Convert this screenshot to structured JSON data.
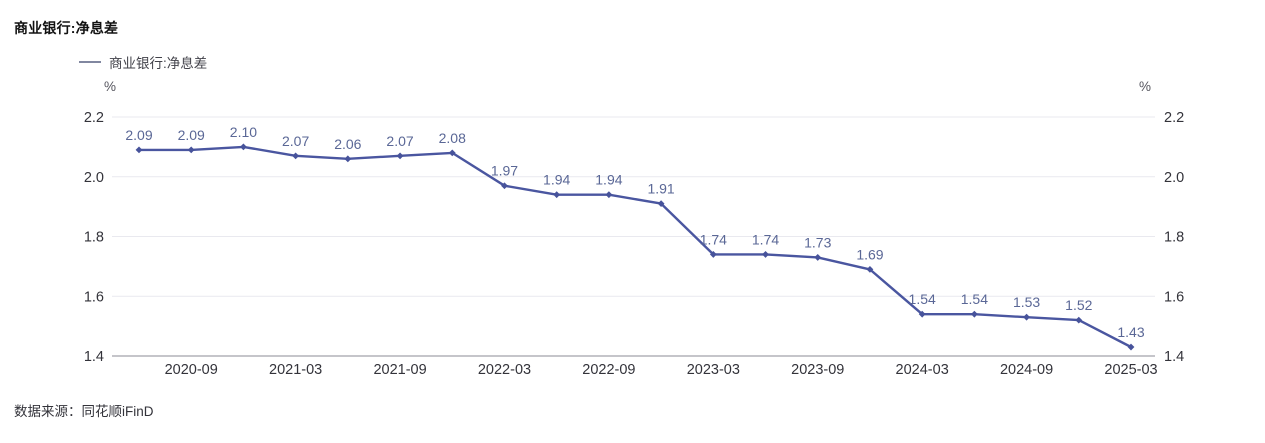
{
  "title": "商业银行:净息差",
  "legend": {
    "label": "商业银行:净息差"
  },
  "units": {
    "left": "%",
    "right": "%"
  },
  "source": {
    "label": "数据来源：",
    "value": "同花顺iFinD"
  },
  "colors": {
    "line": "#4a56a0",
    "marker": "#47539b",
    "data_label": "#5a6796",
    "axis_text": "#33333a",
    "grid_line": "#e9e9ef",
    "axis_line": "#8b8b94"
  },
  "chart_data": {
    "type": "line",
    "title": "商业银行:净息差",
    "series": [
      {
        "name": "商业银行:净息差",
        "values": [
          2.09,
          2.09,
          2.1,
          2.07,
          2.06,
          2.07,
          2.08,
          1.97,
          1.94,
          1.94,
          1.91,
          1.74,
          1.74,
          1.73,
          1.69,
          1.54,
          1.54,
          1.53,
          1.52,
          1.43
        ]
      }
    ],
    "x": [
      "2020-06",
      "2020-09",
      "2020-12",
      "2021-03",
      "2021-06",
      "2021-09",
      "2021-12",
      "2022-03",
      "2022-06",
      "2022-09",
      "2022-12",
      "2023-03",
      "2023-06",
      "2023-09",
      "2023-12",
      "2024-03",
      "2024-06",
      "2024-09",
      "2024-12",
      "2025-03"
    ],
    "data_labels": [
      "2.09",
      "2.09",
      "2.10",
      "2.07",
      "2.06",
      "2.07",
      "2.08",
      "1.97",
      "1.94",
      "1.94",
      "1.91",
      "1.74",
      "1.74",
      "1.73",
      "1.69",
      "1.54",
      "1.54",
      "1.53",
      "1.52",
      "1.43"
    ],
    "x_tick_labels": [
      "2020-09",
      "2021-03",
      "2021-09",
      "2022-03",
      "2022-09",
      "2023-03",
      "2023-09",
      "2024-03",
      "2024-09",
      "2025-03"
    ],
    "x_tick_indices": [
      1,
      3,
      5,
      7,
      9,
      11,
      13,
      15,
      17,
      19
    ],
    "y_ticks": [
      "2.2",
      "2.0",
      "1.8",
      "1.6",
      "1.4"
    ],
    "ylim": [
      1.4,
      2.2
    ],
    "ylabel": "%",
    "grid": "horizontal",
    "legend_position": "top-left",
    "marker": "diamond"
  }
}
